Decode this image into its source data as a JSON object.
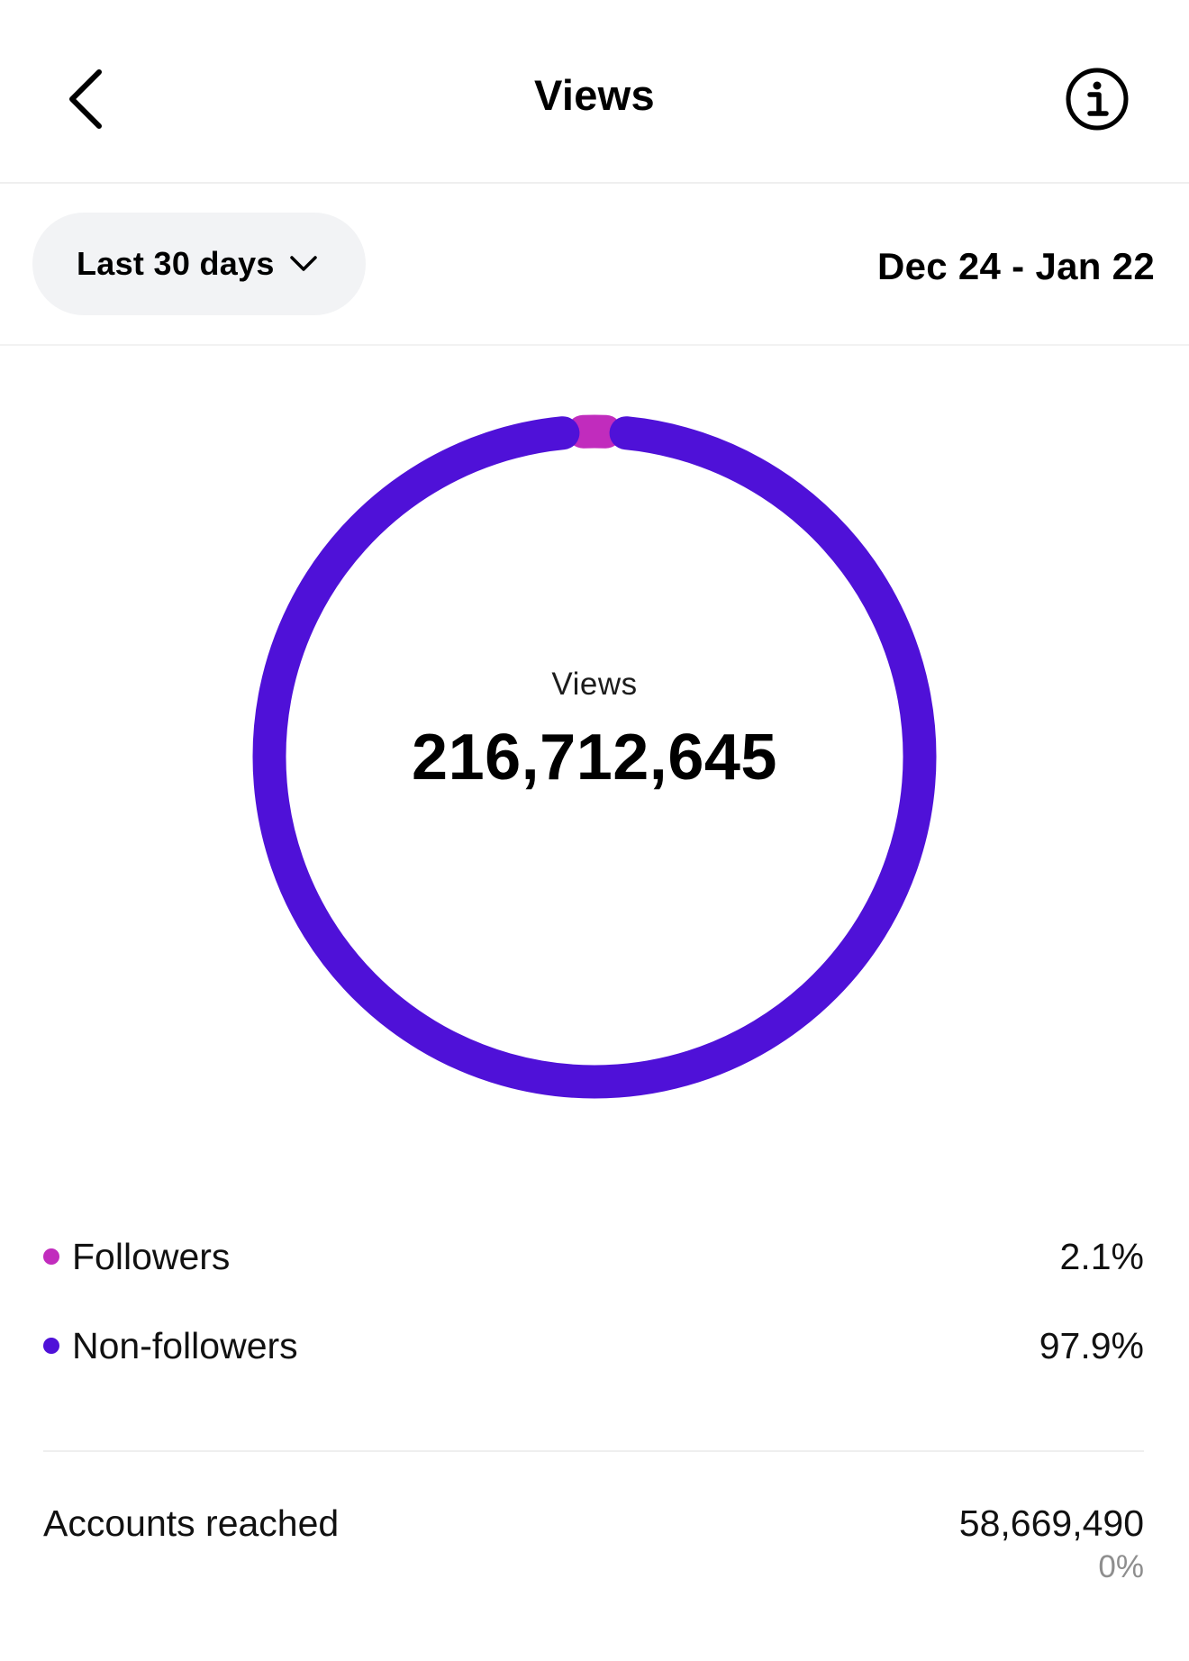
{
  "header": {
    "title": "Views",
    "back_icon": "chevron-left-icon",
    "info_icon": "info-icon"
  },
  "filter": {
    "range_label": "Last 30 days",
    "date_range": "Dec 24 - Jan 22"
  },
  "chart_data": {
    "type": "pie",
    "center_label": "Views",
    "center_value": "216,712,645",
    "segments": [
      {
        "name": "Followers",
        "value": 2.1,
        "color": "#c12cbd"
      },
      {
        "name": "Non-followers",
        "value": 97.9,
        "color": "#4f11d8"
      }
    ]
  },
  "legend": [
    {
      "label": "Followers",
      "value": "2.1%",
      "color": "#c12cbd"
    },
    {
      "label": "Non-followers",
      "value": "97.9%",
      "color": "#4f11d8"
    }
  ],
  "metrics": {
    "accounts_reached_label": "Accounts reached",
    "accounts_reached_value": "58,669,490",
    "accounts_reached_change": "0%"
  }
}
